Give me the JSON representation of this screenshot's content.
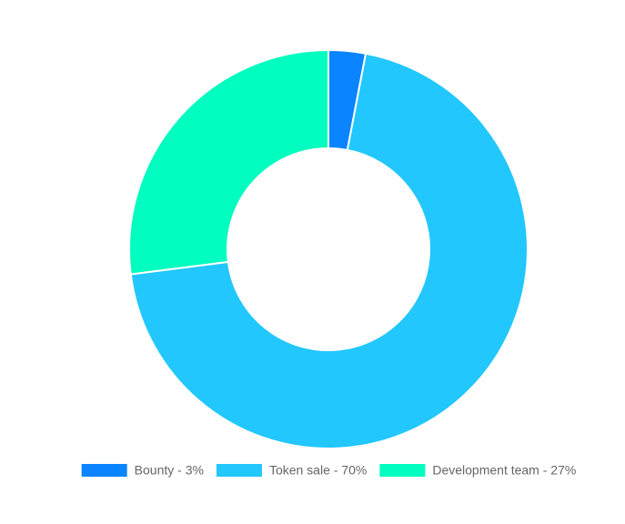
{
  "chart_data": {
    "type": "doughnut",
    "categories": [
      "Bounty - 3%",
      "Token sale - 70%",
      "Development team - 27%"
    ],
    "values": [
      3,
      70,
      27
    ],
    "colors": [
      "#0a84ff",
      "#22c7fe",
      "#01fdbf"
    ]
  }
}
